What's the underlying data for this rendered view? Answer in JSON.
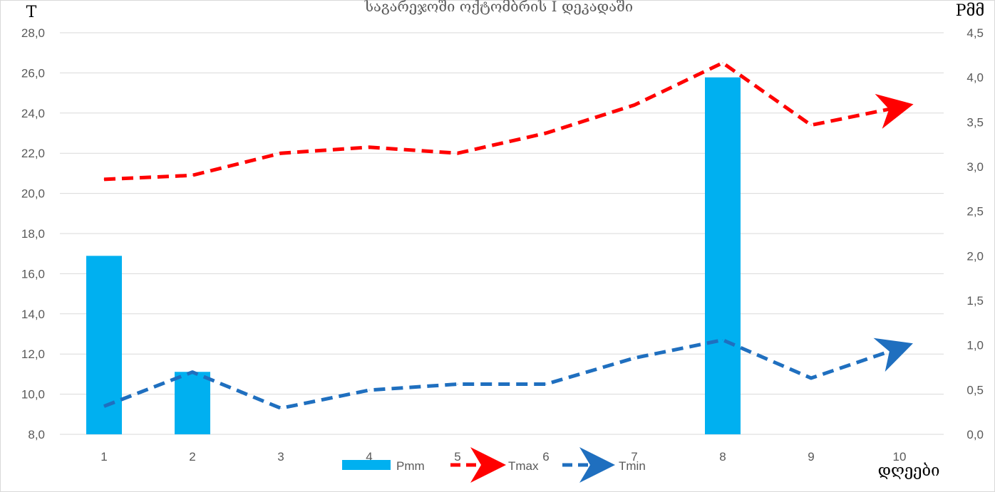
{
  "chart_data": {
    "type": "bar+line",
    "title": "საგარეჯოში ოქტომბრის I დეკადაში",
    "y_left_label": "T",
    "y_right_label": "Pმმ",
    "x_label": "დღეები",
    "categories": [
      "1",
      "2",
      "3",
      "4",
      "5",
      "6",
      "7",
      "8",
      "9",
      "10"
    ],
    "y_left_range": [
      8.0,
      28.0
    ],
    "y_left_ticks": [
      "8,0",
      "10,0",
      "12,0",
      "14,0",
      "16,0",
      "18,0",
      "20,0",
      "22,0",
      "24,0",
      "26,0",
      "28,0"
    ],
    "y_right_range": [
      0.0,
      4.5
    ],
    "y_right_ticks": [
      "0,0",
      "0,5",
      "1,0",
      "1,5",
      "2,0",
      "2,5",
      "3,0",
      "3,5",
      "4,0",
      "4,5"
    ],
    "grid": true,
    "legend_position": "bottom",
    "series": [
      {
        "name": "Pmm",
        "kind": "bar",
        "axis": "right",
        "color": "#00b0f0",
        "values": [
          2.0,
          0.7,
          0,
          0,
          0,
          0,
          0,
          4.0,
          0,
          0
        ]
      },
      {
        "name": "Tmax",
        "kind": "line",
        "axis": "left",
        "color": "#ff0000",
        "dashed": true,
        "arrow_end": true,
        "values": [
          20.7,
          20.9,
          22.0,
          22.3,
          22.0,
          23.0,
          24.4,
          26.5,
          23.4,
          24.3
        ]
      },
      {
        "name": "Tmin",
        "kind": "line",
        "axis": "left",
        "color": "#1f6fbf",
        "dashed": true,
        "arrow_end": true,
        "values": [
          9.4,
          11.1,
          9.3,
          10.2,
          10.5,
          10.5,
          11.8,
          12.7,
          10.8,
          12.3
        ]
      }
    ]
  }
}
